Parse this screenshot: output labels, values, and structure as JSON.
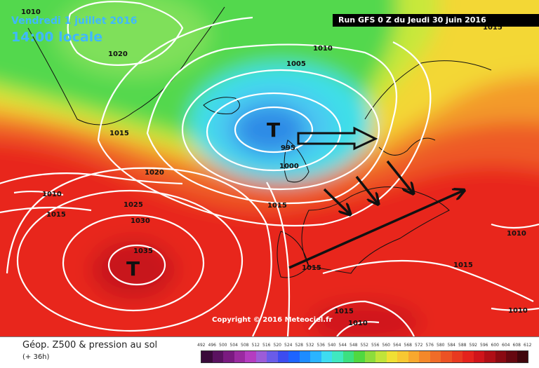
{
  "header": {
    "date": "Vendredi 1 juillet 2016",
    "time": "14:00 locale",
    "run": "Run GFS 0 Z du Jeudi 30 juin 2016"
  },
  "map": {
    "pressure_labels": [
      "1010",
      "1020",
      "1015",
      "1010",
      "1005",
      "995",
      "1000",
      "1020",
      "1010",
      "1015",
      "1025",
      "1030",
      "1035",
      "1015",
      "1015",
      "1015",
      "1010",
      "1015",
      "1010",
      "1015",
      "1010"
    ],
    "lows": [
      "T",
      "T"
    ],
    "copyright": "Copyright © 2016 Meteociel.fr",
    "colors": {
      "deep_low": "#2f8be6",
      "low": "#4cc8f2",
      "cyan": "#3edfe8",
      "green": "#52d84e",
      "yellow_green": "#c8e83a",
      "yellow": "#f3d735",
      "orange": "#f39a2c",
      "red_orange": "#ee5a26",
      "red": "#e8261e",
      "isobar": "#ffffff",
      "coast": "#111111"
    }
  },
  "footer": {
    "title": "Géop. Z500 & pression au sol",
    "subtitle": "(+ 36h)",
    "legend_ticks": [
      "492",
      "496",
      "500",
      "504",
      "508",
      "512",
      "516",
      "520",
      "524",
      "528",
      "532",
      "536",
      "540",
      "544",
      "548",
      "552",
      "556",
      "560",
      "564",
      "568",
      "572",
      "576",
      "580",
      "584",
      "588",
      "592",
      "596",
      "600",
      "604",
      "608",
      "612"
    ],
    "legend_colors": [
      "#3a0a3a",
      "#5a1260",
      "#7a1a80",
      "#9a2aa0",
      "#b43cc0",
      "#9c5cd8",
      "#6a5ce8",
      "#3c4cf0",
      "#1e64ff",
      "#1e8cff",
      "#2ab4ff",
      "#3edcf0",
      "#40e8c0",
      "#3ce080",
      "#50d840",
      "#8cdc3c",
      "#c0e43a",
      "#f0e034",
      "#f8c832",
      "#f8a82e",
      "#f4882a",
      "#f06c28",
      "#ec5224",
      "#e83a20",
      "#e4221c",
      "#d0141a",
      "#b00e16",
      "#8a0a12",
      "#660810",
      "#40060c"
    ]
  }
}
